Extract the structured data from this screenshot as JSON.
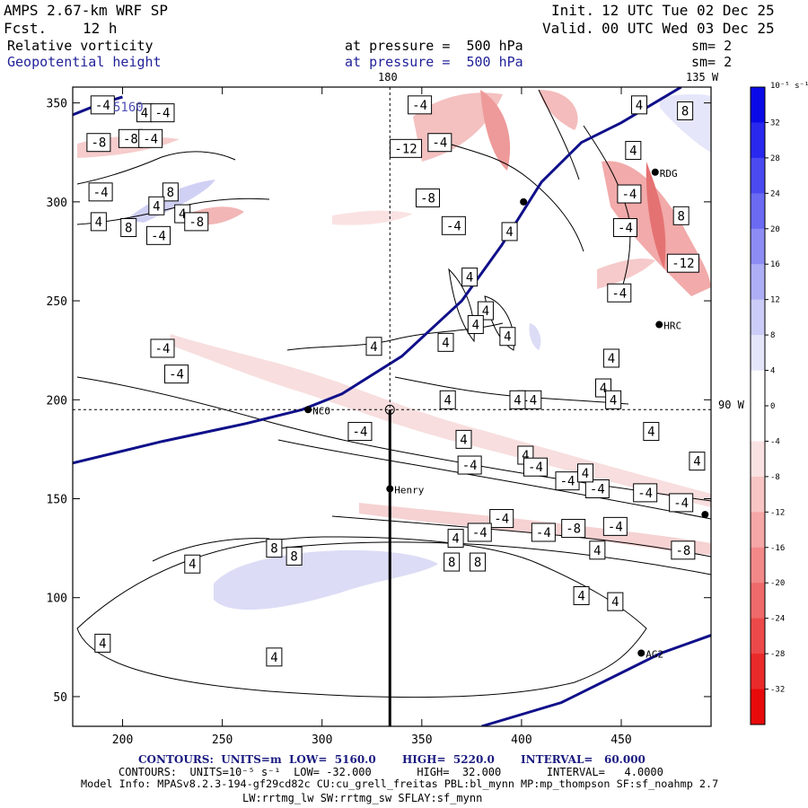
{
  "header": {
    "model": "AMPS 2.67-km WRF SP",
    "init_label": "Init.",
    "init": "12 UTC Tue 02 Dec 25",
    "fcst_label": "Fcst.",
    "fcst": "12 h",
    "valid_label": "Valid.",
    "valid": "00 UTC Wed 03 Dec 25",
    "field1": "Relative vorticity",
    "field1_level": "at pressure =  500 hPa",
    "field1_sm": "sm= 2",
    "field2": "Geopotential height",
    "field2_level": "at pressure =  500 hPa",
    "field2_sm": "sm= 2"
  },
  "map_labels": {
    "lon_180": "180",
    "lon_135w": "135 W",
    "lon_90w": "90 W",
    "height_label": "5160"
  },
  "stations": [
    {
      "name": "RDG",
      "x": 467,
      "y": 315
    },
    {
      "name": "HRC",
      "x": 469,
      "y": 238
    },
    {
      "name": "NCO",
      "x": 293,
      "y": 195
    },
    {
      "name": "Henry",
      "x": 334,
      "y": 155
    },
    {
      "name": "AG2",
      "x": 460,
      "y": 72
    },
    {
      "name": "",
      "x": 401,
      "y": 300
    },
    {
      "name": "",
      "x": 492,
      "y": 142
    }
  ],
  "contour_labels": [
    {
      "t": "-4",
      "x": 190,
      "y": 349
    },
    {
      "t": "4",
      "x": 211,
      "y": 345
    },
    {
      "t": "-4",
      "x": 220,
      "y": 345
    },
    {
      "t": "-8",
      "x": 188,
      "y": 330
    },
    {
      "t": "-8",
      "x": 204,
      "y": 332
    },
    {
      "t": "-4",
      "x": 214,
      "y": 332
    },
    {
      "t": "-4",
      "x": 189,
      "y": 305
    },
    {
      "t": "8",
      "x": 224,
      "y": 305
    },
    {
      "t": "4",
      "x": 217,
      "y": 298
    },
    {
      "t": "4",
      "x": 230,
      "y": 294
    },
    {
      "t": "8",
      "x": 203,
      "y": 287
    },
    {
      "t": "4",
      "x": 188,
      "y": 290
    },
    {
      "t": "-8",
      "x": 237,
      "y": 290
    },
    {
      "t": "-4",
      "x": 218,
      "y": 283
    },
    {
      "t": "-4",
      "x": 349,
      "y": 349
    },
    {
      "t": "-12",
      "x": 342,
      "y": 327
    },
    {
      "t": "-4",
      "x": 359,
      "y": 330
    },
    {
      "t": "-8",
      "x": 353,
      "y": 302
    },
    {
      "t": "-4",
      "x": 366,
      "y": 288
    },
    {
      "t": "4",
      "x": 394,
      "y": 285
    },
    {
      "t": "4",
      "x": 374,
      "y": 262
    },
    {
      "t": "4",
      "x": 382,
      "y": 245
    },
    {
      "t": "4",
      "x": 377,
      "y": 238
    },
    {
      "t": "4",
      "x": 393,
      "y": 232
    },
    {
      "t": "4",
      "x": 362,
      "y": 229
    },
    {
      "t": "4",
      "x": 459,
      "y": 349
    },
    {
      "t": "8",
      "x": 482,
      "y": 346
    },
    {
      "t": "4",
      "x": 456,
      "y": 326
    },
    {
      "t": "-4",
      "x": 454,
      "y": 304
    },
    {
      "t": "8",
      "x": 480,
      "y": 293
    },
    {
      "t": "-4",
      "x": 452,
      "y": 287
    },
    {
      "t": "-12",
      "x": 481,
      "y": 269
    },
    {
      "t": "-4",
      "x": 449,
      "y": 254
    },
    {
      "t": "4",
      "x": 445,
      "y": 221
    },
    {
      "t": "4",
      "x": 441,
      "y": 206
    },
    {
      "t": "4",
      "x": 446,
      "y": 200
    },
    {
      "t": "-4",
      "x": 220,
      "y": 226
    },
    {
      "t": "-4",
      "x": 227,
      "y": 213
    },
    {
      "t": "4",
      "x": 326,
      "y": 227
    },
    {
      "t": "-4",
      "x": 404,
      "y": 200
    },
    {
      "t": "4",
      "x": 363,
      "y": 200
    },
    {
      "t": "4",
      "x": 398,
      "y": 200
    },
    {
      "t": "-4",
      "x": 319,
      "y": 184
    },
    {
      "t": "4",
      "x": 371,
      "y": 180
    },
    {
      "t": "4",
      "x": 402,
      "y": 172
    },
    {
      "t": "4",
      "x": 465,
      "y": 184
    },
    {
      "t": "-4",
      "x": 374,
      "y": 167
    },
    {
      "t": "-4",
      "x": 407,
      "y": 166
    },
    {
      "t": "4",
      "x": 488,
      "y": 169
    },
    {
      "t": "-4",
      "x": 423,
      "y": 159
    },
    {
      "t": "-4",
      "x": 438,
      "y": 155
    },
    {
      "t": "4",
      "x": 432,
      "y": 163
    },
    {
      "t": "-4",
      "x": 480,
      "y": 148
    },
    {
      "t": "-4",
      "x": 462,
      "y": 153
    },
    {
      "t": "-4",
      "x": 390,
      "y": 140
    },
    {
      "t": "-4",
      "x": 379,
      "y": 133
    },
    {
      "t": "-4",
      "x": 411,
      "y": 133
    },
    {
      "t": "-8",
      "x": 426,
      "y": 135
    },
    {
      "t": "-4",
      "x": 447,
      "y": 136
    },
    {
      "t": "-8",
      "x": 481,
      "y": 124
    },
    {
      "t": "4",
      "x": 367,
      "y": 130
    },
    {
      "t": "4",
      "x": 438,
      "y": 124
    },
    {
      "t": "8",
      "x": 276,
      "y": 125
    },
    {
      "t": "8",
      "x": 286,
      "y": 121
    },
    {
      "t": "4",
      "x": 235,
      "y": 117
    },
    {
      "t": "8",
      "x": 365,
      "y": 118
    },
    {
      "t": "8",
      "x": 378,
      "y": 118
    },
    {
      "t": "4",
      "x": 430,
      "y": 101
    },
    {
      "t": "4",
      "x": 447,
      "y": 98
    },
    {
      "t": "4",
      "x": 190,
      "y": 77
    },
    {
      "t": "4",
      "x": 276,
      "y": 70
    }
  ],
  "colorbar": {
    "unit": "10⁻⁵ s⁻¹",
    "ticks": [
      "32",
      "28",
      "24",
      "20",
      "16",
      "12",
      "8",
      "4",
      "0",
      "-4",
      "-8",
      "-12",
      "-16",
      "-20",
      "-24",
      "-28",
      "-32"
    ],
    "colors": [
      "#0a0ae8",
      "#2828ee",
      "#4a4af0",
      "#6a6af2",
      "#8c8cf4",
      "#aeaef6",
      "#ccccf8",
      "#e4e4fb",
      "#ffffff",
      "#ffffff",
      "#fbe2e2",
      "#f8c4c4",
      "#f5a6a6",
      "#f28888",
      "#ef6a6a",
      "#ec4a4a",
      "#e92a2a",
      "#e80a0a"
    ]
  },
  "footer": {
    "contours1": "CONTOURS:  UNITS=m  LOW=  5160.0       HIGH=  5220.0       INTERVAL=   60.000",
    "contours2": "CONTOURS:  UNITS=10⁻⁵ s⁻¹  LOW= -32.000       HIGH=  32.000       INTERVAL=   4.0000",
    "model_info": "Model Info: MPASv8.2.3-194-gf29cd82c CU:cu_grell_freitas PBL:bl_mynn MP:mp_thompson SF:sf_noahmp 2.7",
    "model_info2": "LW:rrtmg_lw SW:rrtmg_sw SFLAY:sf_mynn"
  },
  "chart_data": {
    "type": "contour",
    "title": "Relative vorticity / Geopotential height at 500 hPa",
    "x_ticks": [
      200,
      250,
      300,
      350,
      400,
      450
    ],
    "y_ticks": [
      50,
      100,
      150,
      200,
      250,
      300,
      350
    ],
    "xlim": [
      175,
      495
    ],
    "ylim": [
      35,
      358
    ],
    "height_contours": [
      {
        "level": 5160,
        "points": [
          [
            175,
            168
          ],
          [
            220,
            179
          ],
          [
            262,
            188
          ],
          [
            290,
            195
          ],
          [
            310,
            203
          ],
          [
            340,
            222
          ],
          [
            370,
            250
          ],
          [
            390,
            278
          ],
          [
            410,
            310
          ],
          [
            430,
            330
          ],
          [
            450,
            340
          ],
          [
            470,
            352
          ],
          [
            480,
            358
          ]
        ]
      },
      {
        "level": 5160,
        "points": [
          [
            175,
            344
          ],
          [
            190,
            350
          ],
          [
            200,
            353
          ]
        ]
      },
      {
        "level": 5220,
        "points": [
          [
            380,
            35
          ],
          [
            420,
            47
          ],
          [
            450,
            62
          ],
          [
            470,
            72
          ],
          [
            495,
            81
          ]
        ]
      }
    ],
    "cross_section_x": 334,
    "cross_section_y": 195
  }
}
